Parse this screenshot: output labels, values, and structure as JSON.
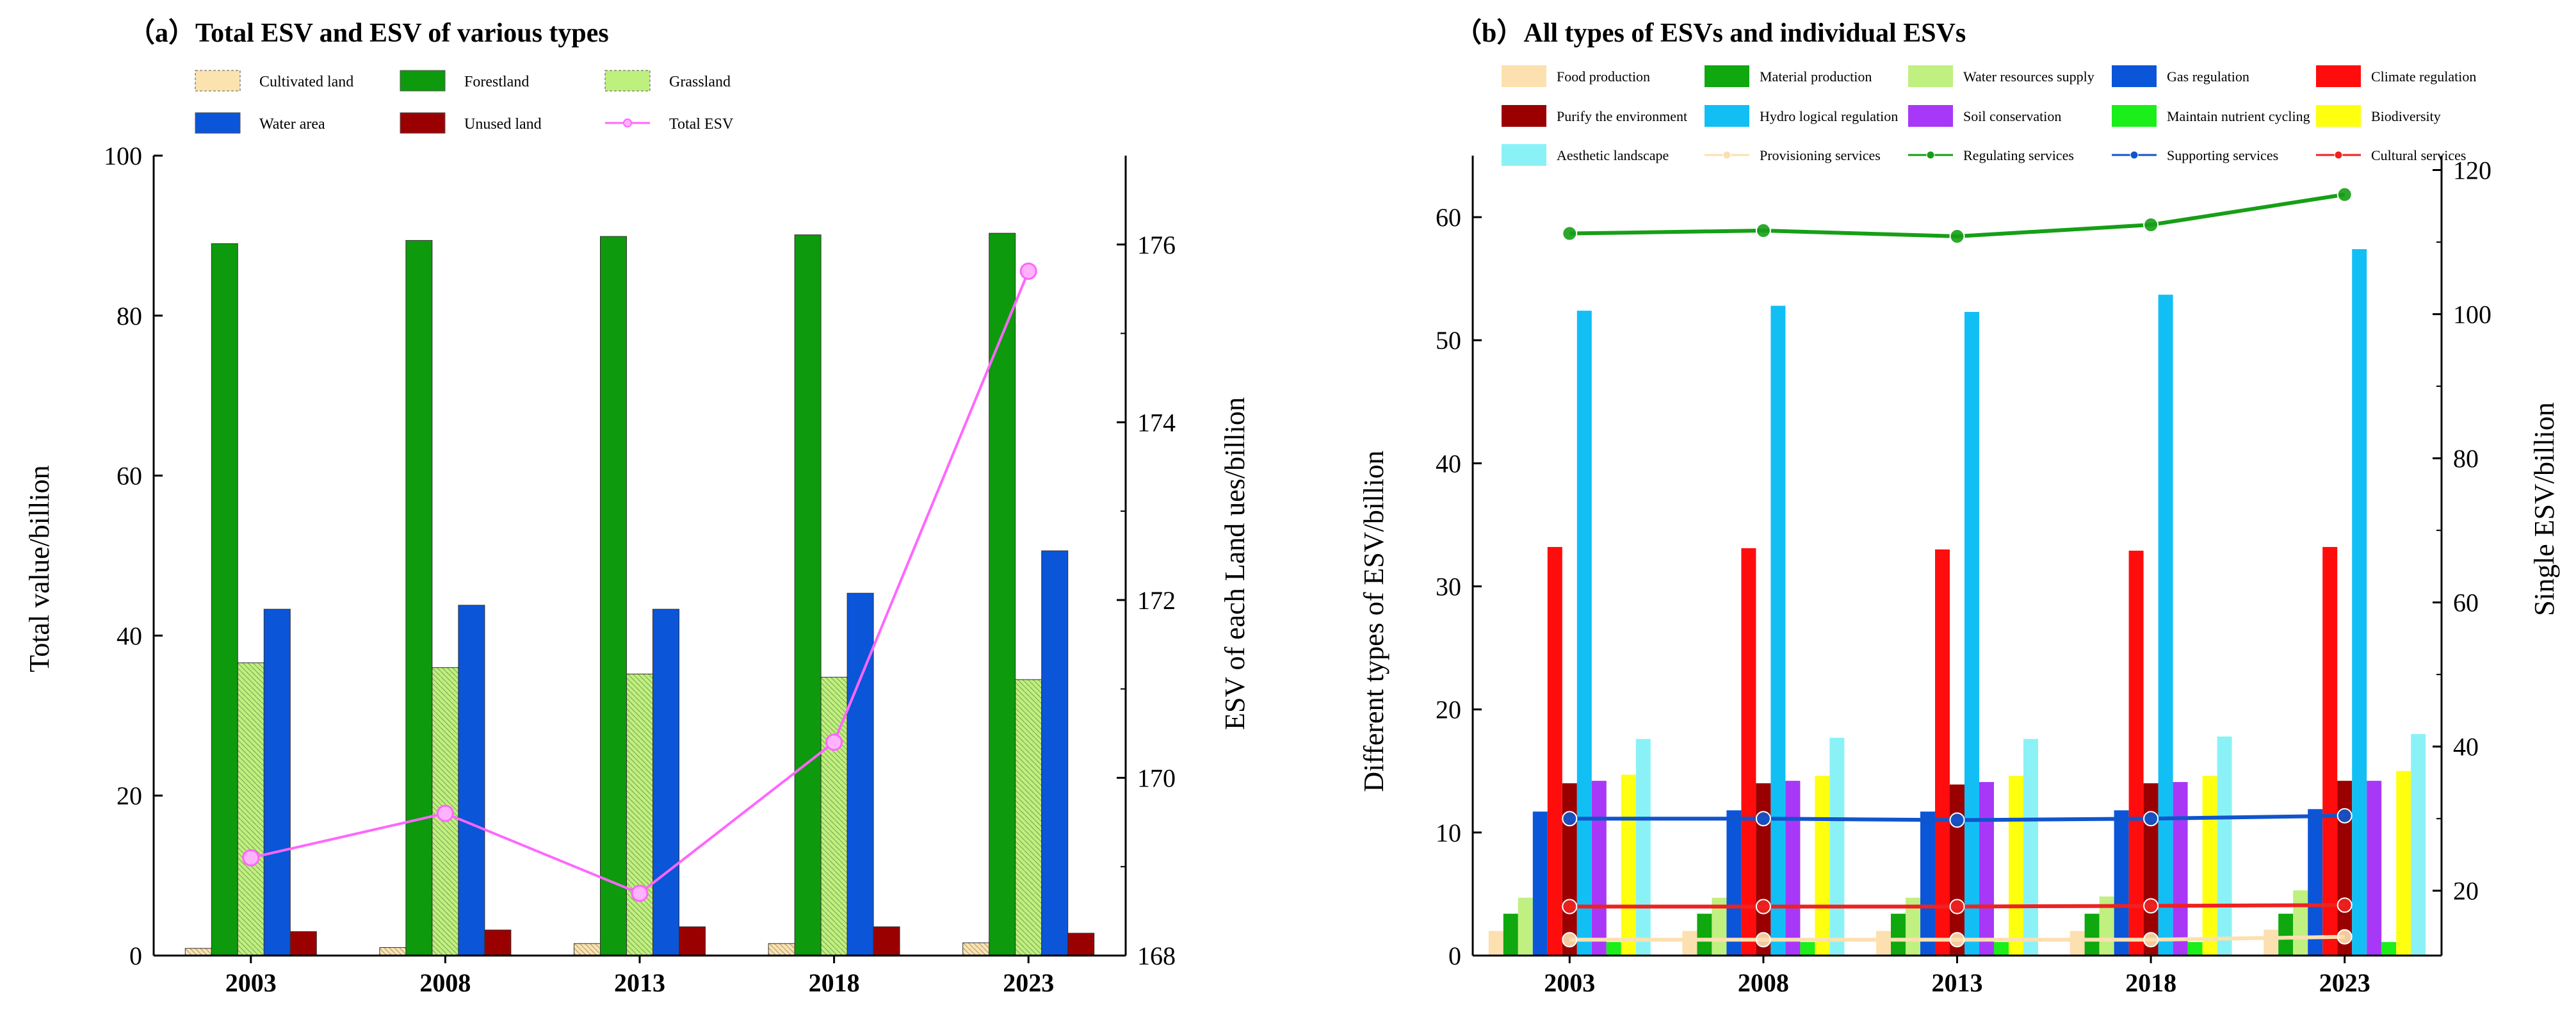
{
  "chart_data": [
    {
      "type": "bar",
      "title": "（a）Total ESV and ESV of various types",
      "categories": [
        "2003",
        "2008",
        "2013",
        "2018",
        "2023"
      ],
      "ylabel": "Total value/billion",
      "y2label": "ESV of each Land ues/billion",
      "ylim": [
        0,
        100
      ],
      "y2lim": [
        168,
        177
      ],
      "yticks": [
        0,
        20,
        40,
        60,
        80,
        100
      ],
      "y2ticks": [
        168,
        170,
        172,
        174,
        176
      ],
      "legend_position": "top",
      "series": [
        {
          "name": "Cultivated land",
          "color": "#fbe3b0",
          "hatched": true,
          "axis": "left",
          "values": [
            0.9,
            1.0,
            1.5,
            1.5,
            1.6
          ]
        },
        {
          "name": "Forestland",
          "color": "#0d9a0d",
          "hatched": false,
          "axis": "left",
          "values": [
            89.0,
            89.4,
            89.9,
            90.1,
            90.3
          ]
        },
        {
          "name": "Grassland",
          "color": "#bef07e",
          "hatched": true,
          "axis": "left",
          "values": [
            36.6,
            36.0,
            35.2,
            34.8,
            34.5
          ]
        },
        {
          "name": "Water area",
          "color": "#0b55d9",
          "hatched": false,
          "axis": "left",
          "values": [
            43.3,
            43.8,
            43.3,
            45.3,
            50.6
          ]
        },
        {
          "name": "Unused  land",
          "color": "#9b0000",
          "hatched": false,
          "axis": "left",
          "values": [
            3.0,
            3.2,
            3.6,
            3.6,
            2.8
          ]
        },
        {
          "name": "Total ESV",
          "color": "#ff66ff",
          "type": "line",
          "axis": "right",
          "values": [
            169.1,
            169.6,
            168.7,
            170.4,
            175.7
          ]
        }
      ]
    },
    {
      "type": "bar",
      "title": "（b）All types of ESVs and individual ESVs",
      "categories": [
        "2003",
        "2008",
        "2013",
        "2018",
        "2023"
      ],
      "ylabel": "Different types of ESV/billion",
      "y2label": "Single ESV/billion",
      "ylim": [
        0,
        65
      ],
      "y2lim": [
        11,
        122
      ],
      "yticks": [
        0,
        10,
        20,
        30,
        40,
        50,
        60
      ],
      "y2ticks": [
        20,
        40,
        60,
        80,
        100,
        120
      ],
      "legend_position": "top",
      "series": [
        {
          "name": "Food production",
          "color": "#fde0b0",
          "axis": "left",
          "values": [
            2.0,
            2.0,
            2.0,
            2.0,
            2.1
          ]
        },
        {
          "name": "Material production",
          "color": "#0fa80f",
          "axis": "left",
          "values": [
            3.4,
            3.4,
            3.4,
            3.4,
            3.4
          ]
        },
        {
          "name": "Water resources supply",
          "color": "#c0f080",
          "axis": "left",
          "values": [
            4.7,
            4.7,
            4.7,
            4.8,
            5.3
          ]
        },
        {
          "name": "Gas regulation",
          "color": "#0b55d9",
          "axis": "left",
          "values": [
            11.7,
            11.8,
            11.7,
            11.8,
            11.9
          ]
        },
        {
          "name": "Climate regulation",
          "color": "#ff0d0d",
          "axis": "left",
          "values": [
            33.2,
            33.1,
            33.0,
            32.9,
            33.2
          ]
        },
        {
          "name": "Purify the environment",
          "color": "#9b0000",
          "axis": "left",
          "values": [
            14.0,
            14.0,
            13.9,
            14.0,
            14.2
          ]
        },
        {
          "name": "Hydro logical regulation",
          "color": "#12bff5",
          "axis": "left",
          "values": [
            52.4,
            52.8,
            52.3,
            53.7,
            57.4
          ]
        },
        {
          "name": "Soil conservation",
          "color": "#a838f7",
          "axis": "left",
          "values": [
            14.2,
            14.2,
            14.1,
            14.1,
            14.2
          ]
        },
        {
          "name": "Maintain nutrient cycling",
          "color": "#1aef1a",
          "axis": "left",
          "values": [
            1.1,
            1.1,
            1.1,
            1.1,
            1.1
          ]
        },
        {
          "name": "Biodiversity",
          "color": "#ffff10",
          "axis": "left",
          "values": [
            14.7,
            14.6,
            14.6,
            14.6,
            15.0
          ]
        },
        {
          "name": "Aesthetic landscape",
          "color": "#8af2f7",
          "axis": "left",
          "values": [
            17.6,
            17.7,
            17.6,
            17.8,
            18.0
          ]
        },
        {
          "name": "Provisioning services",
          "color": "#fde0b0",
          "type": "line",
          "axis": "right",
          "values": [
            13.2,
            13.2,
            13.2,
            13.2,
            13.6
          ]
        },
        {
          "name": "Regulating services",
          "color": "#169f16",
          "type": "line",
          "axis": "right",
          "values": [
            111.2,
            111.6,
            110.8,
            112.4,
            116.6
          ]
        },
        {
          "name": "Supporting services",
          "color": "#1155cc",
          "type": "line",
          "axis": "right",
          "values": [
            30.0,
            30.0,
            29.8,
            30.0,
            30.4
          ]
        },
        {
          "name": "Cultural services",
          "color": "#ee2222",
          "type": "line",
          "axis": "right",
          "values": [
            17.8,
            17.8,
            17.8,
            17.9,
            18.0
          ]
        }
      ]
    }
  ]
}
